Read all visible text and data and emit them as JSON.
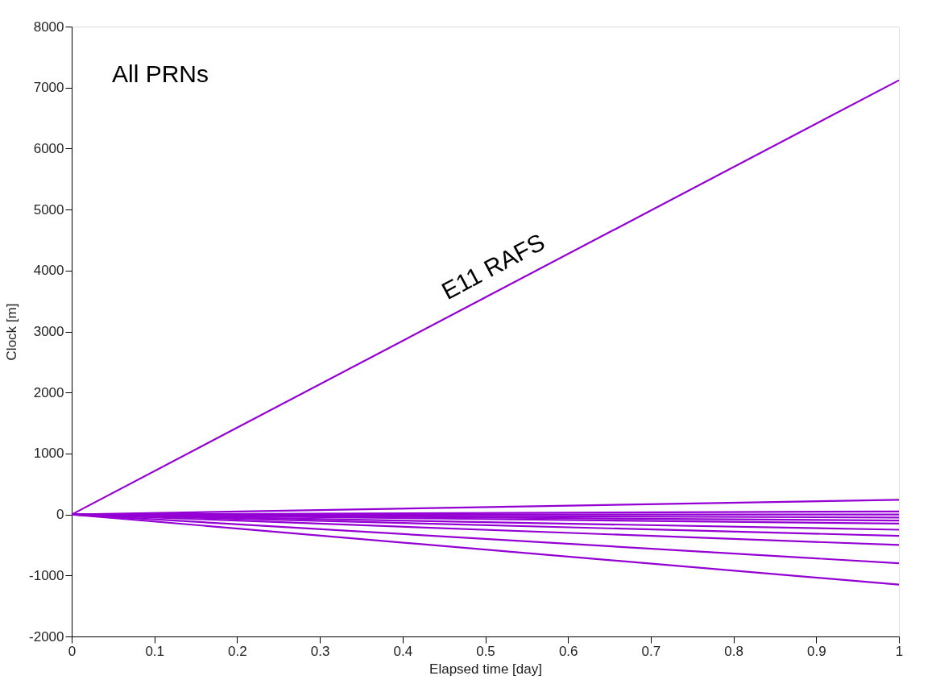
{
  "chart_data": {
    "type": "line",
    "xlabel": "Elapsed time [day]",
    "ylabel": "Clock [m]",
    "x": [
      0,
      1
    ],
    "series": [
      {
        "color": "#9400d3",
        "values": [
          0,
          7120
        ]
      },
      {
        "color": "#9400d3",
        "values": [
          0,
          240
        ]
      },
      {
        "color": "#9400d3",
        "values": [
          0,
          50
        ]
      },
      {
        "color": "#9400d3",
        "values": [
          0,
          0
        ]
      },
      {
        "color": "#9400d3",
        "values": [
          0,
          -50
        ]
      },
      {
        "color": "#9400d3",
        "values": [
          0,
          -100
        ]
      },
      {
        "color": "#9400d3",
        "values": [
          0,
          -150
        ]
      },
      {
        "color": "#9400d3",
        "values": [
          0,
          -250
        ]
      },
      {
        "color": "#9400d3",
        "values": [
          0,
          -350
        ]
      },
      {
        "color": "#9400d3",
        "values": [
          0,
          -500
        ]
      },
      {
        "color": "#9400d3",
        "values": [
          0,
          -800
        ]
      },
      {
        "color": "#9400d3",
        "values": [
          0,
          -1150
        ]
      }
    ],
    "xlim": [
      0,
      1
    ],
    "xticks": [
      0,
      0.1,
      0.2,
      0.3,
      0.4,
      0.5,
      0.6,
      0.7,
      0.8,
      0.9,
      1
    ],
    "ylim": [
      -2000,
      8000
    ],
    "yticks": [
      -2000,
      -1000,
      0,
      1000,
      2000,
      3000,
      4000,
      5000,
      6000,
      7000,
      8000
    ],
    "grid": false,
    "legend": false,
    "line_style": "solid",
    "annotations": [
      "All PRNs",
      "E11 RAFS"
    ]
  }
}
